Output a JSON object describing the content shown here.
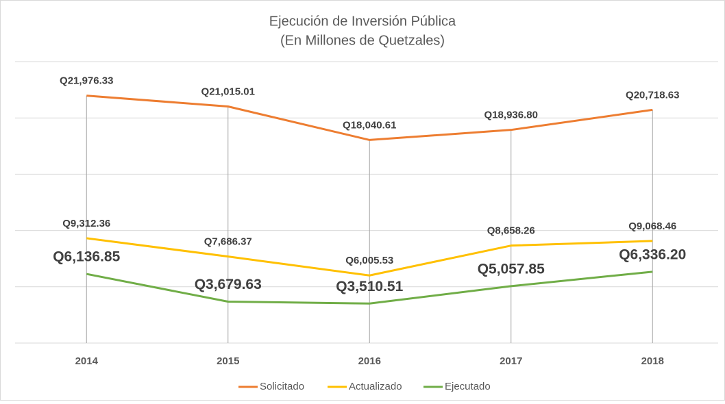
{
  "chart_data": {
    "type": "line",
    "title": "Ejecución de Inversión Pública",
    "subtitle": "(En Millones de Quetzales)",
    "categories": [
      "2014",
      "2015",
      "2016",
      "2017",
      "2018"
    ],
    "series": [
      {
        "name": "Solicitado",
        "color": "#ed7d31",
        "values": [
          21976.33,
          21015.01,
          18040.61,
          18936.8,
          20718.63
        ],
        "value_labels": [
          "Q21,976.33",
          "Q21,015.01",
          "Q18,040.61",
          "Q18,936.80",
          "Q20,718.63"
        ]
      },
      {
        "name": "Actualizado",
        "color": "#ffc000",
        "values": [
          9312.36,
          7686.37,
          6005.53,
          8658.26,
          9068.46
        ],
        "value_labels": [
          "Q9,312.36",
          "Q7,686.37",
          "Q6,005.53",
          "Q8,658.26",
          "Q9,068.46"
        ]
      },
      {
        "name": "Ejecutado",
        "color": "#70ad47",
        "values": [
          6136.85,
          3679.63,
          3510.51,
          5057.85,
          6336.2
        ],
        "value_labels": [
          "Q6,136.85",
          "Q3,679.63",
          "Q3,510.51",
          "Q5,057.85",
          "Q6,336.20"
        ]
      }
    ],
    "ylim": [
      0,
      25000
    ],
    "yticks": [
      0,
      5000,
      10000,
      15000,
      20000,
      25000
    ],
    "grid": true,
    "legend": "bottom"
  }
}
